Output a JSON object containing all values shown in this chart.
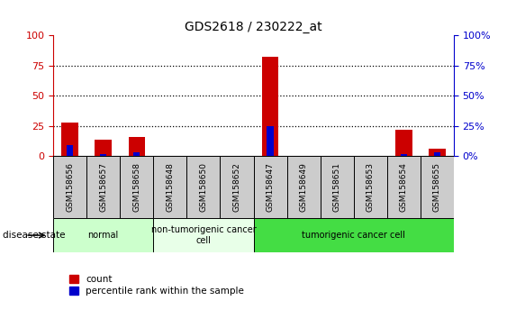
{
  "title": "GDS2618 / 230222_at",
  "samples": [
    "GSM158656",
    "GSM158657",
    "GSM158658",
    "GSM158648",
    "GSM158650",
    "GSM158652",
    "GSM158647",
    "GSM158649",
    "GSM158651",
    "GSM158653",
    "GSM158654",
    "GSM158655"
  ],
  "count_values": [
    28,
    14,
    16,
    0,
    0,
    0,
    82,
    0,
    0,
    0,
    22,
    6
  ],
  "percentile_values": [
    9,
    2,
    3,
    0,
    0,
    0,
    25,
    0,
    0,
    0,
    2,
    3
  ],
  "ylim": [
    0,
    100
  ],
  "yticks": [
    0,
    25,
    50,
    75,
    100
  ],
  "groups": [
    {
      "label": "normal",
      "start": 0,
      "end": 3,
      "color": "#ccffcc"
    },
    {
      "label": "non-tumorigenic cancer\ncell",
      "start": 3,
      "end": 6,
      "color": "#e8ffe8"
    },
    {
      "label": "tumorigenic cancer cell",
      "start": 6,
      "end": 12,
      "color": "#44dd44"
    }
  ],
  "bar_color_red": "#cc0000",
  "bar_color_blue": "#0000cc",
  "left_axis_color": "#cc0000",
  "right_axis_color": "#0000cc",
  "sample_box_color": "#cccccc",
  "disease_label": "disease state",
  "legend_count": "count",
  "legend_pct": "percentile rank within the sample"
}
